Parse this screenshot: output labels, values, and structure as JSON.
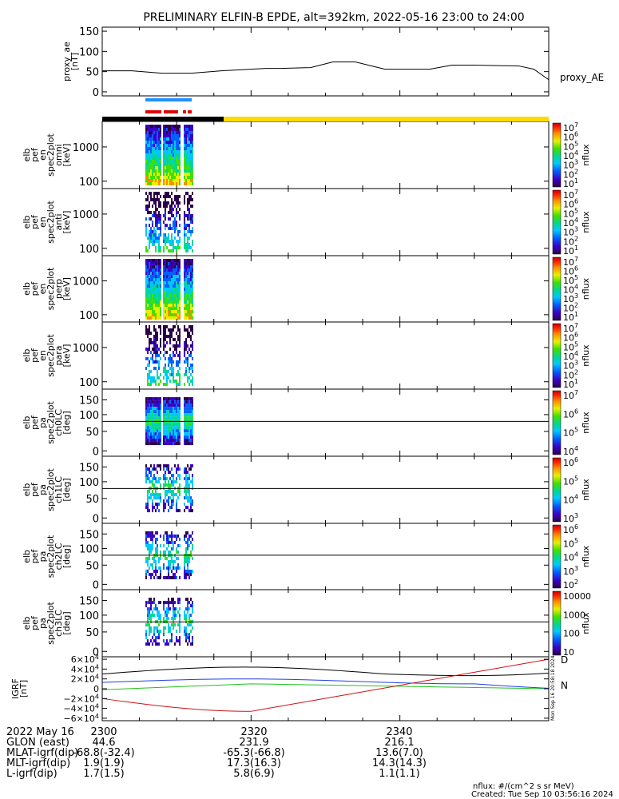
{
  "title": "PRELIMINARY ELFIN-B EPDE, alt=392km, 2022-05-16 23:00 to 24:00",
  "chart_data": [
    {
      "type": "line",
      "panel": "proxy_ae",
      "ylabel": [
        "proxy_ae",
        "[nT]"
      ],
      "legend": "proxy_AE",
      "yticks": [
        "150",
        "100",
        "50",
        "0"
      ],
      "ylim": [
        -10,
        160
      ],
      "x_minutes": [
        0,
        4,
        8,
        12,
        16,
        20,
        22,
        24,
        28,
        31,
        34,
        38,
        40,
        44,
        47,
        50,
        56,
        58,
        60
      ],
      "values": [
        52,
        52,
        46,
        46,
        52,
        56,
        58,
        58,
        60,
        74,
        74,
        56,
        56,
        56,
        66,
        66,
        64,
        56,
        30
      ]
    },
    {
      "type": "heatmap",
      "panel": "omni",
      "ylabel": [
        "elb",
        "pef",
        "en",
        "spec2plot",
        "omni",
        "[keV]"
      ],
      "yticks": [
        "1000",
        "100"
      ],
      "colorbar": {
        "ticks": [
          "10^7",
          "10^6",
          "10^5",
          "10^4",
          "10^3",
          "10^2",
          "10^1"
        ],
        "label": "nflux"
      }
    },
    {
      "type": "heatmap",
      "panel": "anti",
      "ylabel": [
        "elb",
        "pef",
        "en",
        "spec2plot",
        "anti",
        "[keV]"
      ],
      "yticks": [
        "1000",
        "100"
      ],
      "colorbar": {
        "ticks": [
          "10^7",
          "10^6",
          "10^5",
          "10^4",
          "10^3",
          "10^2",
          "10^1"
        ],
        "label": "nflux"
      }
    },
    {
      "type": "heatmap",
      "panel": "perp",
      "ylabel": [
        "elb",
        "pef",
        "en",
        "spec2plot",
        "perp",
        "[keV]"
      ],
      "yticks": [
        "1000",
        "100"
      ],
      "colorbar": {
        "ticks": [
          "10^7",
          "10^6",
          "10^5",
          "10^4",
          "10^3",
          "10^2",
          "10^1"
        ],
        "label": "nflux"
      }
    },
    {
      "type": "heatmap",
      "panel": "para",
      "ylabel": [
        "elb",
        "pef",
        "en",
        "spec2plot",
        "para",
        "[keV]"
      ],
      "yticks": [
        "1000",
        "100"
      ],
      "colorbar": {
        "ticks": [
          "10^7",
          "10^6",
          "10^5",
          "10^4",
          "10^3",
          "10^2",
          "10^1"
        ],
        "label": "nflux"
      }
    },
    {
      "type": "heatmap",
      "panel": "ch0LC",
      "ylabel": [
        "elb",
        "pef",
        "pa",
        "spec2plot",
        "ch0LC",
        "[deg]"
      ],
      "yticks": [
        "150",
        "100",
        "50",
        "0"
      ],
      "colorbar": {
        "ticks": [
          "10^7",
          "10^6",
          "10^5",
          "10^4"
        ],
        "label": "nflux"
      }
    },
    {
      "type": "heatmap",
      "panel": "ch1LC",
      "ylabel": [
        "elb",
        "pef",
        "pa",
        "spec2plot",
        "ch1LC",
        "[deg]"
      ],
      "yticks": [
        "150",
        "100",
        "50",
        "0"
      ],
      "colorbar": {
        "ticks": [
          "10^6",
          "10^5",
          "10^4",
          "10^3"
        ],
        "label": "nflux"
      }
    },
    {
      "type": "heatmap",
      "panel": "ch2LC",
      "ylabel": [
        "elb",
        "pef",
        "pa",
        "spec2plot",
        "ch2LC",
        "[deg]"
      ],
      "yticks": [
        "150",
        "100",
        "50",
        "0"
      ],
      "colorbar": {
        "ticks": [
          "10^6",
          "10^5",
          "10^4",
          "10^3",
          "10^2"
        ],
        "label": "nflux"
      }
    },
    {
      "type": "heatmap",
      "panel": "ch3LC",
      "ylabel": [
        "elb",
        "pef",
        "pa",
        "spec2plot",
        "ch3LC",
        "[deg]"
      ],
      "yticks": [
        "150",
        "100",
        "50",
        "0"
      ],
      "colorbar": {
        "ticks": [
          "10000",
          "1000",
          "100",
          "10"
        ],
        "label": "nflux"
      }
    },
    {
      "type": "line",
      "panel": "IGRF",
      "ylabel": [
        "IGRF",
        "[nT]"
      ],
      "yticks": [
        "6×10^4",
        "4×10^4",
        "2×10^4",
        "0",
        "−2×10^4",
        "−4×10^4",
        "−6×10^4"
      ],
      "ylim": [
        -65000,
        65000
      ],
      "legend": [
        "D",
        "N"
      ],
      "series_colors": {
        "black": "#000000",
        "blue": "#1f3fe0",
        "green": "#1fc21f",
        "red": "#d11212"
      }
    }
  ],
  "time_axis": {
    "rows": [
      {
        "label": "2022 May 16",
        "values": [
          "2300",
          "2320",
          "2340"
        ]
      },
      {
        "label": "GLON (east)",
        "values": [
          "44.6",
          "231.9",
          "216.1"
        ]
      },
      {
        "label": "MLAT-igrf(dip)",
        "values": [
          "-68.8(-32.4)",
          "-65.3(-66.8)",
          "13.6(7.0)"
        ]
      },
      {
        "label": "MLT-igrf(dip)",
        "values": [
          "1.9(1.9)",
          "17.3(16.3)",
          "14.3(14.3)"
        ]
      },
      {
        "label": "L-igrf(dip)",
        "values": [
          "1.7(1.5)",
          "5.8(6.9)",
          "1.1(1.1)"
        ]
      }
    ]
  },
  "footer": {
    "units": "nflux: #/(cm^2 s sr MeV)",
    "created": "Created: Tue Sep 10 03:56:16 2024",
    "side_stamp": "Mon Sep 16 20:58:18 2024"
  },
  "colors": {
    "science_zone_bar": "#ffd900",
    "black_bar": "#000000",
    "blue_bar": "#1e90ff",
    "red_bar": "#e00000"
  }
}
